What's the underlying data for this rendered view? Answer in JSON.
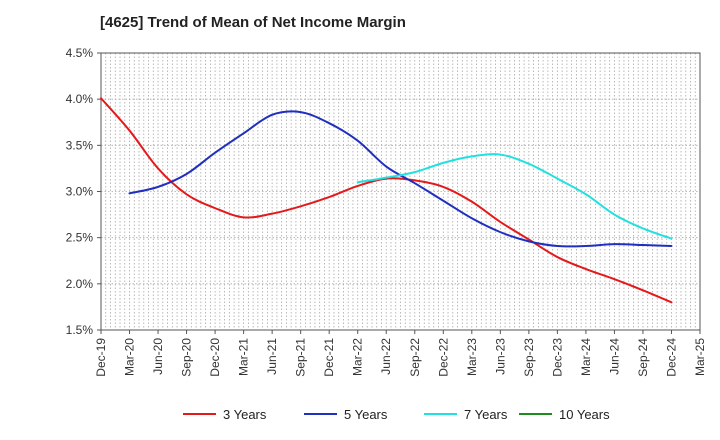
{
  "chart_data": {
    "type": "line",
    "title": "[4625]  Trend of Mean of Net Income Margin",
    "xlabel": "",
    "ylabel": "",
    "x": [
      "Dec-19",
      "Mar-20",
      "Jun-20",
      "Sep-20",
      "Dec-20",
      "Mar-21",
      "Jun-21",
      "Sep-21",
      "Dec-21",
      "Mar-22",
      "Jun-22",
      "Sep-22",
      "Dec-22",
      "Mar-23",
      "Jun-23",
      "Sep-23",
      "Dec-23",
      "Mar-24",
      "Jun-24",
      "Sep-24",
      "Dec-24",
      "Mar-25"
    ],
    "y_ticks": [
      "1.5%",
      "2.0%",
      "2.5%",
      "3.0%",
      "3.5%",
      "4.0%",
      "4.5%"
    ],
    "ylim": [
      1.5,
      4.5
    ],
    "grid": true,
    "legend_position": "bottom",
    "series": [
      {
        "name": "3 Years",
        "color": "#e31a1c",
        "values": [
          4.01,
          3.66,
          3.25,
          2.97,
          2.82,
          2.72,
          2.76,
          2.84,
          2.94,
          3.06,
          3.14,
          3.12,
          3.05,
          2.89,
          2.67,
          2.48,
          2.29,
          2.16,
          2.05,
          1.93,
          1.8,
          null
        ]
      },
      {
        "name": "5 Years",
        "color": "#1f2fbf",
        "values": [
          null,
          2.98,
          3.05,
          3.19,
          3.42,
          3.63,
          3.83,
          3.86,
          3.74,
          3.55,
          3.27,
          3.09,
          2.9,
          2.71,
          2.56,
          2.46,
          2.41,
          2.41,
          2.43,
          2.42,
          2.41,
          null
        ]
      },
      {
        "name": "7 Years",
        "color": "#22e0e0",
        "values": [
          null,
          null,
          null,
          null,
          null,
          null,
          null,
          null,
          null,
          3.1,
          3.15,
          3.21,
          3.31,
          3.38,
          3.4,
          3.3,
          3.14,
          2.97,
          2.75,
          2.6,
          2.49,
          null
        ]
      },
      {
        "name": "10 Years",
        "color": "#1e8c1e",
        "values": [
          null,
          null,
          null,
          null,
          null,
          null,
          null,
          null,
          null,
          null,
          null,
          null,
          null,
          null,
          null,
          null,
          null,
          null,
          null,
          null,
          null,
          null
        ]
      }
    ]
  }
}
